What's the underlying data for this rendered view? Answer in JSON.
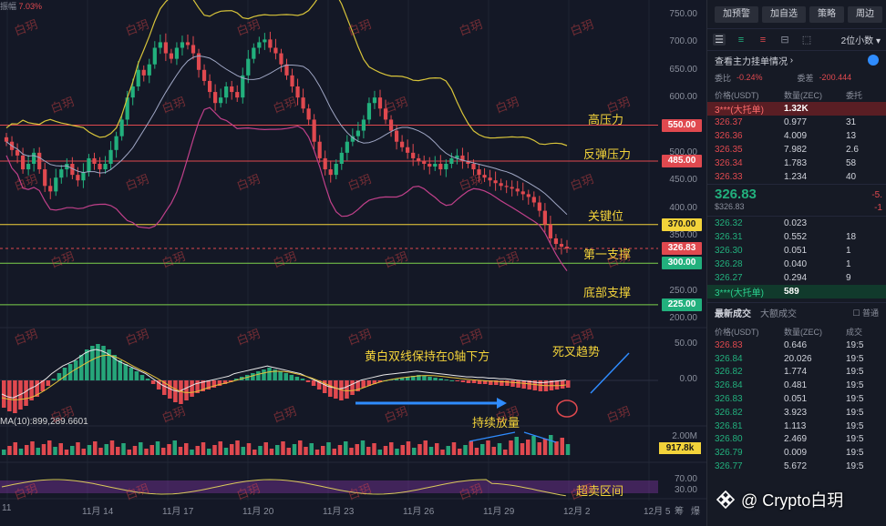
{
  "top_mini": {
    "label": "振幅",
    "value": "7.03%"
  },
  "chart_data": {
    "type": "candlestick",
    "symbol": "ZEC/USDT",
    "price_axis": [
      "750.00",
      "700.00",
      "650.00",
      "600.00",
      "500.00",
      "450.00",
      "400.00",
      "350.00",
      "250.00",
      "200.00"
    ],
    "price_ylim": [
      200,
      760
    ],
    "price_tags": [
      {
        "value": "550.00",
        "kind": "red"
      },
      {
        "value": "485.00",
        "kind": "red"
      },
      {
        "value": "370.00",
        "kind": "yellow"
      },
      {
        "value": "326.83",
        "kind": "red"
      },
      {
        "value": "300.00",
        "kind": "green"
      },
      {
        "value": "225.00",
        "kind": "green"
      }
    ],
    "levels": [
      {
        "price": 550,
        "color": "#e0494f",
        "label": "高压力"
      },
      {
        "price": 485,
        "color": "#e0494f",
        "label": "反弹压力"
      },
      {
        "price": 370,
        "color": "#f3d33a",
        "label": "关键位"
      },
      {
        "price": 326.83,
        "color": "#e0494f",
        "label": "第一支撑"
      },
      {
        "price": 300,
        "color": "#7cd24b",
        "label": "底部支撑"
      },
      {
        "price": 225,
        "color": "#7cd24b",
        "label": ""
      }
    ],
    "x_dates": [
      "11",
      "11月 14",
      "11月 17",
      "11月 20",
      "11月 23",
      "11月 26",
      "11月 29",
      "12月 2",
      "12月 5"
    ],
    "closes": [
      520,
      505,
      495,
      470,
      480,
      500,
      470,
      440,
      430,
      455,
      470,
      480,
      460,
      450,
      465,
      490,
      480,
      470,
      480,
      505,
      530,
      560,
      600,
      620,
      650,
      640,
      660,
      690,
      700,
      680,
      670,
      690,
      700,
      695,
      680,
      650,
      630,
      610,
      590,
      600,
      620,
      610,
      600,
      640,
      670,
      690,
      700,
      705,
      690,
      680,
      660,
      640,
      620,
      600,
      580,
      560,
      520,
      490,
      470,
      460,
      480,
      500,
      520,
      530,
      540,
      560,
      590,
      600,
      580,
      560,
      540,
      520,
      510,
      500,
      490,
      485,
      480,
      475,
      480,
      470,
      480,
      490,
      495,
      485,
      480,
      470,
      460,
      455,
      450,
      445,
      440,
      438,
      435,
      430,
      425,
      420,
      410,
      395,
      370,
      345,
      335,
      330,
      326.83
    ],
    "macd_axis": [
      "50.00",
      "0.00"
    ],
    "macd_hist": [
      -30,
      -34,
      -36,
      -32,
      -28,
      -22,
      -18,
      -12,
      -6,
      2,
      8,
      14,
      18,
      22,
      28,
      34,
      38,
      40,
      38,
      34,
      28,
      22,
      18,
      14,
      10,
      6,
      2,
      -4,
      -10,
      -16,
      -20,
      -24,
      -26,
      -22,
      -18,
      -14,
      -12,
      -10,
      -8,
      -6,
      -4,
      -2,
      2,
      4,
      6,
      8,
      10,
      12,
      14,
      12,
      10,
      8,
      6,
      4,
      2,
      -2,
      -6,
      -10,
      -14,
      -18,
      -20,
      -22,
      -20,
      -16,
      -12,
      -8,
      -6,
      -4,
      -2,
      0,
      1,
      2,
      3,
      4,
      5,
      6,
      5,
      4,
      3,
      2,
      1,
      0,
      -1,
      -2,
      -3,
      -3,
      -4,
      -4,
      -5,
      -5,
      -6,
      -6,
      -7,
      -8,
      -9,
      -10,
      -11,
      -12,
      -12,
      -11,
      -10,
      -9,
      -8
    ],
    "macd_annotation": "黄白双线保持在0轴下方",
    "death_cross_label": "死叉趋势",
    "volume_axis": "2.00M",
    "volume_tag": "917.8k",
    "volume_ma_text": "MA(10):899,289.6601",
    "volume_annotation": "持续放量",
    "rsi_axis": [
      "70.00",
      "30.00"
    ],
    "rsi_annotation": "超卖区间"
  },
  "panel": {
    "buttons": [
      "加预警",
      "加自选",
      "策略",
      "周边"
    ],
    "decimal_select": "2位小数",
    "whale_link": "查看主力挂单情况",
    "ratio_label_1": "委比",
    "ratio_value_1": "-0.24%",
    "ratio_label_2": "委差",
    "ratio_value_2": "-200.444",
    "headers": {
      "price": "价格(USDT)",
      "qty": "数量(ZEC)",
      "total": "委托"
    },
    "asks": [
      {
        "price": "3***(大托单)",
        "qty": "1.32K",
        "total": "",
        "big": true
      },
      {
        "price": "326.37",
        "qty": "0.977",
        "total": "31"
      },
      {
        "price": "326.36",
        "qty": "4.009",
        "total": "13"
      },
      {
        "price": "326.35",
        "qty": "7.982",
        "total": "2.6"
      },
      {
        "price": "326.34",
        "qty": "1.783",
        "total": "58"
      },
      {
        "price": "326.33",
        "qty": "1.234",
        "total": "40"
      }
    ],
    "last_price": "326.83",
    "last_price_usd": "$326.83",
    "last_change_1": "-5.",
    "last_change_2": "-1",
    "bids": [
      {
        "price": "326.32",
        "qty": "0.023",
        "total": ""
      },
      {
        "price": "326.31",
        "qty": "0.552",
        "total": "18"
      },
      {
        "price": "326.30",
        "qty": "0.051",
        "total": "1"
      },
      {
        "price": "326.28",
        "qty": "0.040",
        "total": "1"
      },
      {
        "price": "326.27",
        "qty": "0.294",
        "total": "9"
      },
      {
        "price": "3***(大托单)",
        "qty": "589",
        "total": "",
        "big": true
      }
    ],
    "trades_tab_active": "最新成交",
    "trades_tab_other": "大额成交",
    "trades_filter": "普通",
    "trade_headers": {
      "price": "价格(USDT)",
      "qty": "数量(ZEC)",
      "time": "成交"
    },
    "trades": [
      {
        "price": "326.83",
        "qty": "0.646",
        "time": "19:5",
        "dir": "down"
      },
      {
        "price": "326.84",
        "qty": "20.026",
        "time": "19:5",
        "dir": "up"
      },
      {
        "price": "326.82",
        "qty": "1.774",
        "time": "19:5",
        "dir": "up"
      },
      {
        "price": "326.84",
        "qty": "0.481",
        "time": "19:5",
        "dir": "up"
      },
      {
        "price": "326.83",
        "qty": "0.051",
        "time": "19:5",
        "dir": "up"
      },
      {
        "price": "326.82",
        "qty": "3.923",
        "time": "19:5",
        "dir": "up"
      },
      {
        "price": "326.81",
        "qty": "1.113",
        "time": "19:5",
        "dir": "up"
      },
      {
        "price": "326.80",
        "qty": "2.469",
        "time": "19:5",
        "dir": "up"
      },
      {
        "price": "326.79",
        "qty": "0.009",
        "time": "19:5",
        "dir": "up"
      },
      {
        "price": "326.77",
        "qty": "5.672",
        "time": "19:5",
        "dir": "up"
      }
    ]
  },
  "corner_labels": [
    "筹",
    "爆"
  ],
  "watermark": "@ Crypto白玥",
  "watermark_tile": "白玥",
  "colors": {
    "up": "#22b07d",
    "down": "#e0494f",
    "accent": "#f3d33a",
    "bg": "#131722"
  }
}
